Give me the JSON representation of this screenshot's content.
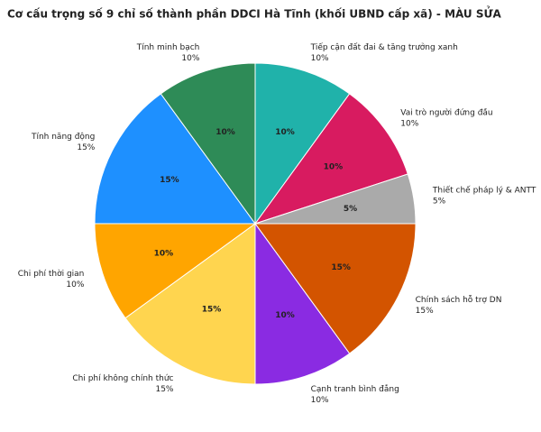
{
  "chart_data": {
    "type": "pie",
    "title": "Cơ cấu trọng số 9 chỉ số thành phần DDCI Hà Tĩnh (khối UBND cấp xã) - MÀU SỬA",
    "categories": [
      "Tiếp cận đất đai & tăng trưởng xanh",
      "Vai trò người đứng đầu",
      "Thiết chế pháp lý & ANTT",
      "Chính sách hỗ trợ DN",
      "Cạnh tranh bình đẳng",
      "Chi phí không chính thức",
      "Chi phí thời gian",
      "Tính năng động",
      "Tính minh bạch"
    ],
    "values": [
      10,
      10,
      5,
      15,
      10,
      15,
      10,
      15,
      10
    ],
    "value_labels": [
      "10%",
      "10%",
      "5%",
      "15%",
      "10%",
      "15%",
      "10%",
      "15%",
      "10%"
    ],
    "colors": [
      "#20b2aa",
      "#d81b60",
      "#aaaaaa",
      "#d35400",
      "#8a2be2",
      "#ffd54f",
      "#ffa500",
      "#1e90ff",
      "#2e8b57"
    ]
  }
}
